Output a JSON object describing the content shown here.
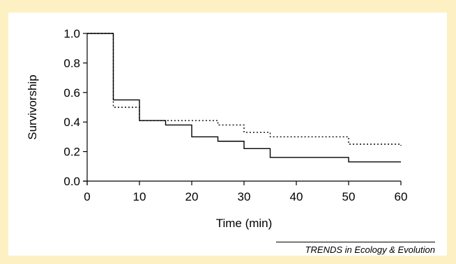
{
  "chart_data": {
    "type": "line",
    "title": "",
    "xlabel": "Time (min)",
    "ylabel": "Survivorship",
    "xlim": [
      0,
      60
    ],
    "ylim": [
      0,
      1.0
    ],
    "x_ticks": [
      "0",
      "10",
      "20",
      "30",
      "40",
      "50",
      "60"
    ],
    "y_ticks": [
      "0.0",
      "0.2",
      "0.4",
      "0.6",
      "0.8",
      "1.0"
    ],
    "grid": false,
    "legend": "none",
    "step": true,
    "series": [
      {
        "line_style": "solid",
        "color": "#000000",
        "x": [
          0,
          5,
          10,
          15,
          20,
          25,
          30,
          35,
          40,
          45,
          50,
          55,
          60
        ],
        "y": [
          1.0,
          0.55,
          0.41,
          0.38,
          0.3,
          0.27,
          0.22,
          0.16,
          0.16,
          0.16,
          0.13,
          0.13,
          0.13
        ]
      },
      {
        "line_style": "dotted",
        "color": "#000000",
        "x": [
          0,
          5,
          10,
          15,
          20,
          25,
          30,
          35,
          40,
          45,
          50,
          55,
          60
        ],
        "y": [
          1.0,
          0.5,
          0.41,
          0.41,
          0.41,
          0.38,
          0.33,
          0.3,
          0.3,
          0.3,
          0.25,
          0.25,
          0.24
        ]
      }
    ]
  },
  "credit": "TRENDS in Ecology & Evolution",
  "colors": {
    "background": "#fdf1c4",
    "panel": "#ffffff",
    "ink": "#000000"
  }
}
